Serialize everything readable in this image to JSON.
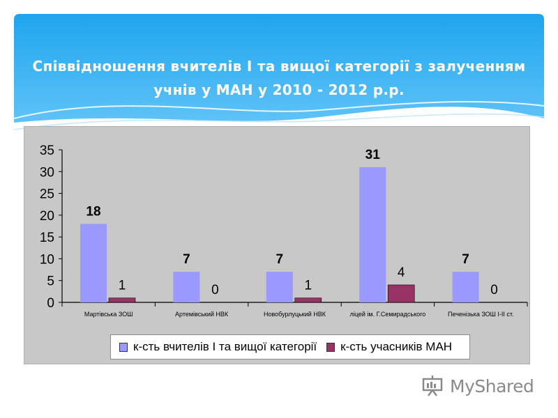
{
  "slide": {
    "title": "Співвідношення вчителів І та вищої категорії з залученням учнів у МАН у 2010 - 2012 р.р.",
    "logo_text": "MyShared"
  },
  "colors": {
    "banner_top": "#1ea5ee",
    "banner_bottom": "#5fc3f7",
    "chart_bg": "#c8c8c8",
    "series_teachers": "#9999ff",
    "series_man": "#993366"
  },
  "chart_data": {
    "type": "bar",
    "categories": [
      "Мартівська ЗОШ",
      "Артемівський НВК",
      "Новобурлуцький НВК",
      "ліцей ім. Г.Семирадського",
      "Печенізька ЗОШ І-ІІ ст."
    ],
    "series": [
      {
        "name": "к-сть вчителів І та вищої категорії",
        "values": [
          18,
          7,
          7,
          31,
          7
        ],
        "color": "#9999ff"
      },
      {
        "name": "к-сть учасників МАН",
        "values": [
          1,
          0,
          1,
          4,
          0
        ],
        "color": "#993366"
      }
    ],
    "ylim": [
      0,
      35
    ],
    "yticks": [
      0,
      5,
      10,
      15,
      20,
      25,
      30,
      35
    ],
    "xlabel": "",
    "ylabel": "",
    "legend_position": "bottom",
    "grid": false
  }
}
